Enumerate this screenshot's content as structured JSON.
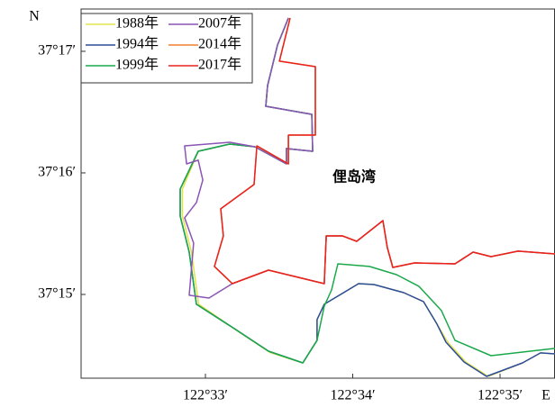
{
  "chart_data": {
    "type": "line",
    "annotations": [
      "N",
      "E",
      "俚岛湾"
    ],
    "xlim": [
      32.156,
      35.373
    ],
    "ylim": [
      14.311,
      17.348
    ],
    "xticks": [
      {
        "value": 33,
        "label": "122°33′"
      },
      {
        "value": 34,
        "label": "122°34′"
      },
      {
        "value": 35,
        "label": "122°35′"
      }
    ],
    "yticks": [
      {
        "value": 15,
        "label": "37°15′"
      },
      {
        "value": 16,
        "label": "37°16′"
      },
      {
        "value": 17,
        "label": "37°17′"
      }
    ],
    "series": [
      {
        "name": "1988年",
        "color": "#e3e34a",
        "x": [
          33.563,
          33.489,
          33.422,
          33.41,
          33.722,
          33.728,
          33.55,
          33.55,
          33.336,
          33.165,
          32.951,
          32.844,
          32.844,
          32.905,
          32.954,
          33.206,
          33.438,
          33.661,
          33.758,
          33.758,
          33.807,
          34.04,
          34.144,
          34.346,
          34.48,
          34.572,
          34.645,
          34.767,
          34.92,
          35.153,
          35.275,
          35.373
        ],
        "y": [
          17.274,
          17.052,
          16.719,
          16.548,
          16.481,
          16.178,
          16.2,
          16.074,
          16.215,
          16.237,
          16.178,
          15.867,
          15.644,
          15.348,
          14.919,
          14.709,
          14.523,
          14.437,
          14.622,
          14.793,
          14.919,
          15.089,
          15.081,
          15.015,
          14.941,
          14.756,
          14.607,
          14.444,
          14.326,
          14.437,
          14.519,
          14.511
        ]
      },
      {
        "name": "1994年",
        "color": "#2b4c9b",
        "x": [
          33.563,
          33.489,
          33.422,
          33.41,
          33.722,
          33.728,
          33.55,
          33.55,
          33.336,
          33.165,
          32.951,
          32.829,
          32.829,
          32.89,
          32.939,
          33.196,
          33.428,
          33.661,
          33.758,
          33.758,
          33.807,
          34.04,
          34.144,
          34.346,
          34.48,
          34.572,
          34.633,
          34.755,
          34.908,
          35.153,
          35.275,
          35.373
        ],
        "y": [
          17.274,
          17.052,
          16.719,
          16.548,
          16.481,
          16.178,
          16.2,
          16.074,
          16.215,
          16.237,
          16.178,
          15.867,
          15.644,
          15.348,
          14.919,
          14.719,
          14.533,
          14.437,
          14.622,
          14.793,
          14.919,
          15.089,
          15.081,
          15.015,
          14.941,
          14.756,
          14.607,
          14.444,
          14.326,
          14.437,
          14.519,
          14.511
        ]
      },
      {
        "name": "1999年",
        "color": "#1aa84a",
        "x": [
          33.563,
          33.489,
          33.422,
          33.41,
          33.722,
          33.728,
          33.55,
          33.55,
          33.336,
          33.165,
          32.951,
          32.829,
          32.829,
          32.89,
          32.939,
          33.196,
          33.428,
          33.661,
          33.758,
          33.807,
          33.856,
          33.899,
          34.113,
          34.297,
          34.449,
          34.602,
          34.694,
          34.939,
          35.373
        ],
        "y": [
          17.274,
          17.052,
          16.719,
          16.548,
          16.481,
          16.178,
          16.2,
          16.074,
          16.215,
          16.237,
          16.178,
          15.867,
          15.644,
          15.348,
          14.919,
          14.719,
          14.533,
          14.437,
          14.622,
          14.904,
          15.037,
          15.252,
          15.23,
          15.163,
          15.067,
          14.867,
          14.622,
          14.496,
          14.556
        ]
      },
      {
        "name": "2007年",
        "color": "#8a55b5",
        "x": [
          33.563,
          33.489,
          33.422,
          33.41,
          33.722,
          33.728,
          33.55,
          33.55,
          33.336,
          33.165,
          32.859,
          32.872,
          32.951,
          32.982,
          32.939,
          32.859,
          32.92,
          32.89,
          33.024,
          33.183,
          33.428,
          33.807,
          33.82,
          33.93,
          34.027,
          34.205,
          34.235,
          34.272,
          34.419,
          34.694,
          34.817,
          34.939,
          35.122,
          35.373
        ],
        "y": [
          17.274,
          17.052,
          16.719,
          16.548,
          16.481,
          16.178,
          16.2,
          16.074,
          16.215,
          16.252,
          16.222,
          16.074,
          16.104,
          15.941,
          15.756,
          15.63,
          15.422,
          14.993,
          14.97,
          15.089,
          15.2,
          15.089,
          15.481,
          15.481,
          15.437,
          15.607,
          15.385,
          15.222,
          15.259,
          15.252,
          15.348,
          15.311,
          15.356,
          15.333
        ]
      },
      {
        "name": "2014年",
        "color": "#f08030",
        "x": [
          33.575,
          33.502,
          33.746,
          33.746,
          33.563,
          33.563,
          33.349,
          33.33,
          33.104,
          33.122,
          33.061,
          33.183,
          33.428,
          33.807,
          33.82,
          33.93,
          34.027,
          34.205,
          34.235,
          34.272,
          34.419,
          34.694,
          34.817,
          34.939,
          35.122,
          35.373
        ],
        "y": [
          17.274,
          16.919,
          16.874,
          16.311,
          16.311,
          16.074,
          16.222,
          15.904,
          15.704,
          15.481,
          15.23,
          15.089,
          15.2,
          15.089,
          15.481,
          15.481,
          15.437,
          15.607,
          15.385,
          15.222,
          15.259,
          15.252,
          15.348,
          15.311,
          15.356,
          15.333
        ]
      },
      {
        "name": "2017年",
        "color": "#e8231e",
        "x": [
          33.575,
          33.502,
          33.746,
          33.746,
          33.563,
          33.563,
          33.349,
          33.33,
          33.104,
          33.122,
          33.061,
          33.183,
          33.428,
          33.807,
          33.82,
          33.93,
          34.027,
          34.205,
          34.235,
          34.272,
          34.419,
          34.694,
          34.817,
          34.939,
          35.122,
          35.373
        ],
        "y": [
          17.274,
          16.919,
          16.874,
          16.311,
          16.311,
          16.074,
          16.222,
          15.904,
          15.704,
          15.481,
          15.23,
          15.089,
          15.2,
          15.089,
          15.481,
          15.481,
          15.437,
          15.607,
          15.385,
          15.222,
          15.259,
          15.252,
          15.348,
          15.311,
          15.356,
          15.333
        ]
      }
    ]
  }
}
